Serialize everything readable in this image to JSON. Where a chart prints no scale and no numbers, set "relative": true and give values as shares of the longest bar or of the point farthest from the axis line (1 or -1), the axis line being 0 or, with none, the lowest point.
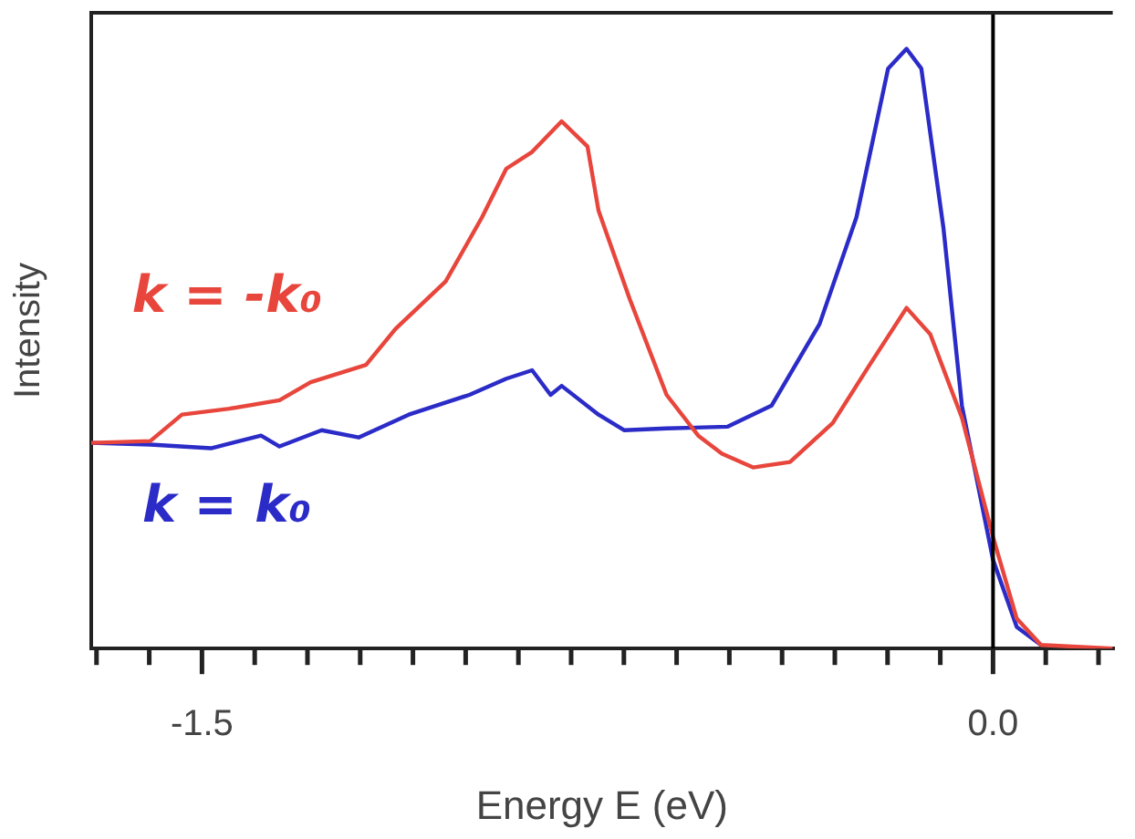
{
  "chart_data": {
    "type": "line",
    "xlabel": "Energy E (eV)",
    "ylabel": "Intensity",
    "relative": true,
    "legend": false,
    "grid": false,
    "tick_labels": "x",
    "marker": "none",
    "line_style": "solid",
    "xlim": [
      -1.71,
      0.227
    ],
    "xticks": [
      {
        "value": -1.7,
        "label": null
      },
      {
        "value": -1.6,
        "label": null
      },
      -1.5,
      {
        "value": -1.4,
        "label": null
      },
      {
        "value": -1.3,
        "label": null
      },
      {
        "value": -1.2,
        "label": null
      },
      {
        "value": -1.1,
        "label": null
      },
      {
        "value": -1.0,
        "label": null
      },
      {
        "value": -0.9,
        "label": null
      },
      {
        "value": -0.8,
        "label": null
      },
      {
        "value": -0.7,
        "label": null
      },
      {
        "value": -0.6,
        "label": null
      },
      {
        "value": -0.5,
        "label": null
      },
      {
        "value": -0.4,
        "label": null
      },
      {
        "value": -0.3,
        "label": null
      },
      {
        "value": -0.2,
        "label": null
      },
      {
        "value": -0.1,
        "label": null
      },
      {
        "value": 0,
        "label": "0.0"
      },
      {
        "value": 0.1,
        "label": null
      },
      {
        "value": 0.2,
        "label": null
      }
    ],
    "ref_lines": [
      {
        "axis": "x",
        "value": 0,
        "color": "#000000"
      }
    ],
    "series": [
      {
        "name": "k = -k₀",
        "color": "#e8463c",
        "x": [
          -1.71,
          -1.598,
          -1.538,
          -1.448,
          -1.353,
          -1.294,
          -1.189,
          -1.133,
          -1.038,
          -0.969,
          -0.923,
          -0.874,
          -0.818,
          -0.769,
          -0.748,
          -0.689,
          -0.619,
          -0.559,
          -0.514,
          -0.455,
          -0.385,
          -0.304,
          -0.234,
          -0.164,
          -0.119,
          -0.059,
          0,
          0.045,
          0.091,
          0.227
        ],
        "values": [
          0.343,
          0.346,
          0.39,
          0.4,
          0.414,
          0.444,
          0.473,
          0.533,
          0.612,
          0.719,
          0.8,
          0.828,
          0.879,
          0.837,
          0.73,
          0.583,
          0.423,
          0.355,
          0.325,
          0.302,
          0.311,
          0.376,
          0.473,
          0.568,
          0.524,
          0.385,
          0.186,
          0.05,
          0.006,
          0
        ]
      },
      {
        "name": "k = k₀",
        "color": "#2b2bc8",
        "x": [
          -1.71,
          -1.598,
          -1.483,
          -1.388,
          -1.353,
          -1.273,
          -1.203,
          -1.108,
          -0.993,
          -0.923,
          -0.874,
          -0.839,
          -0.818,
          -0.748,
          -0.699,
          -0.619,
          -0.503,
          -0.42,
          -0.329,
          -0.259,
          -0.199,
          -0.164,
          -0.136,
          -0.094,
          -0.059,
          0,
          0.045,
          0.091
        ],
        "values": [
          0.343,
          0.34,
          0.334,
          0.355,
          0.337,
          0.364,
          0.352,
          0.39,
          0.423,
          0.45,
          0.464,
          0.423,
          0.438,
          0.39,
          0.364,
          0.367,
          0.37,
          0.405,
          0.541,
          0.719,
          0.967,
          1,
          0.967,
          0.701,
          0.405,
          0.148,
          0.036,
          0.006
        ]
      }
    ]
  }
}
